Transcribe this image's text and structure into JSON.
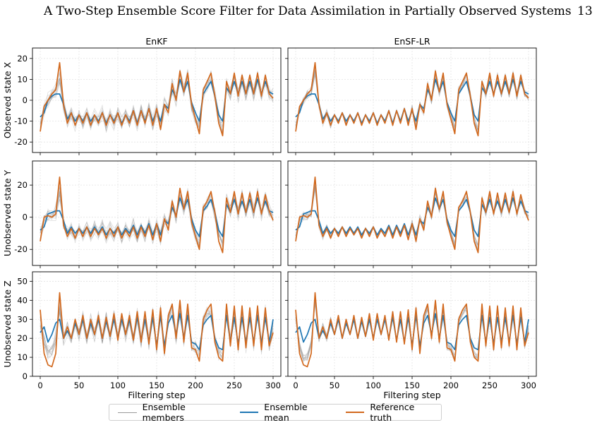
{
  "header": {
    "title": "A Two-Step Ensemble Score Filter for Data Assimilation in Partially Observed Systems",
    "page_number": "13"
  },
  "colors": {
    "ensemble_members": "#9a9a9a",
    "ensemble_mean": "#1f77b4",
    "reference_truth": "#d2691e"
  },
  "chart_data": {
    "type": "line",
    "xlabel": "Filtering step",
    "xlim": [
      -10,
      310
    ],
    "xticks": [
      0,
      50,
      100,
      150,
      200,
      250,
      300
    ],
    "columns": [
      "EnKF",
      "EnSF-LR"
    ],
    "rows": [
      {
        "ylabel": "Observed state X",
        "ylim": [
          -25,
          25
        ],
        "yticks": [
          -20,
          -10,
          0,
          10,
          20
        ]
      },
      {
        "ylabel": "Unobserved state Y",
        "ylim": [
          -30,
          35
        ],
        "yticks": [
          -20,
          0,
          20
        ]
      },
      {
        "ylabel": "Unobserved state Z",
        "ylim": [
          0,
          55
        ],
        "yticks": [
          0,
          10,
          20,
          30,
          40,
          50
        ]
      }
    ],
    "grid": true,
    "legend": {
      "position": "bottom-center",
      "entries": [
        "Ensemble members",
        "Ensemble mean",
        "Reference truth"
      ]
    },
    "series": [
      {
        "name": "Reference truth",
        "x": [
          0,
          5,
          10,
          15,
          20,
          25,
          30,
          35,
          40,
          45,
          50,
          55,
          60,
          65,
          70,
          75,
          80,
          85,
          90,
          95,
          100,
          105,
          110,
          115,
          120,
          125,
          130,
          135,
          140,
          145,
          150,
          155,
          160,
          165,
          170,
          175,
          180,
          185,
          190,
          195,
          200,
          205,
          210,
          215,
          220,
          225,
          230,
          235,
          240,
          245,
          250,
          255,
          260,
          265,
          270,
          275,
          280,
          285,
          290,
          295,
          300
        ],
        "values_by_panel": {
          "X": [
            -15,
            -3,
            0,
            3,
            5,
            18,
            -2,
            -11,
            -6,
            -12,
            -7,
            -11,
            -6,
            -12,
            -7,
            -11,
            -6,
            -12,
            -7,
            -11,
            -6,
            -12,
            -7,
            -11,
            -5,
            -12,
            -5,
            -11,
            -4,
            -12,
            -4,
            -14,
            -2,
            -6,
            8,
            0,
            14,
            4,
            13,
            -2,
            -9,
            -16,
            5,
            9,
            13,
            2,
            -11,
            -17,
            9,
            3,
            13,
            2,
            12,
            3,
            12,
            3,
            13,
            2,
            12,
            3,
            1
          ],
          "Y": [
            -15,
            0,
            1,
            0,
            2,
            25,
            -5,
            -12,
            -7,
            -13,
            -7,
            -12,
            -6,
            -12,
            -7,
            -11,
            -7,
            -13,
            -7,
            -12,
            -6,
            -13,
            -8,
            -12,
            -6,
            -13,
            -6,
            -12,
            -5,
            -14,
            -4,
            -15,
            -1,
            -8,
            10,
            0,
            18,
            5,
            16,
            -3,
            -12,
            -20,
            6,
            10,
            16,
            3,
            -15,
            -22,
            12,
            3,
            16,
            2,
            15,
            3,
            15,
            3,
            16,
            2,
            14,
            4,
            -2
          ],
          "Z": [
            35,
            12,
            6,
            5,
            12,
            44,
            20,
            26,
            20,
            30,
            22,
            32,
            20,
            30,
            22,
            32,
            20,
            31,
            21,
            33,
            19,
            33,
            22,
            32,
            19,
            34,
            18,
            34,
            17,
            35,
            14,
            36,
            12,
            32,
            38,
            20,
            40,
            18,
            38,
            15,
            14,
            8,
            30,
            35,
            38,
            18,
            10,
            8,
            38,
            16,
            37,
            14,
            37,
            15,
            36,
            16,
            37,
            14,
            36,
            16,
            23
          ]
        }
      },
      {
        "name": "Ensemble mean",
        "x": [
          0,
          5,
          10,
          15,
          20,
          25,
          30,
          35,
          40,
          45,
          50,
          55,
          60,
          65,
          70,
          75,
          80,
          85,
          90,
          95,
          100,
          105,
          110,
          115,
          120,
          125,
          130,
          135,
          140,
          145,
          150,
          155,
          160,
          165,
          170,
          175,
          180,
          185,
          190,
          195,
          200,
          205,
          210,
          215,
          220,
          225,
          230,
          235,
          240,
          245,
          250,
          255,
          260,
          265,
          270,
          275,
          280,
          285,
          290,
          295,
          300
        ],
        "values_by_panel": {
          "X": [
            -8,
            -6,
            0,
            2,
            3,
            3,
            -2,
            -9,
            -6,
            -10,
            -7,
            -10,
            -6,
            -10,
            -7,
            -10,
            -6,
            -11,
            -7,
            -10,
            -6,
            -11,
            -7,
            -10,
            -5,
            -11,
            -5,
            -10,
            -4,
            -10,
            -5,
            -10,
            -2,
            -4,
            5,
            1,
            10,
            4,
            9,
            -1,
            -6,
            -10,
            3,
            6,
            9,
            2,
            -7,
            -10,
            6,
            3,
            9,
            3,
            9,
            3,
            9,
            3,
            10,
            3,
            9,
            4,
            3
          ],
          "Y": [
            -8,
            -6,
            2,
            3,
            4,
            4,
            -2,
            -10,
            -6,
            -10,
            -7,
            -10,
            -6,
            -10,
            -6,
            -10,
            -6,
            -11,
            -7,
            -10,
            -6,
            -11,
            -7,
            -10,
            -5,
            -11,
            -5,
            -10,
            -4,
            -11,
            -4,
            -11,
            -2,
            -4,
            6,
            1,
            12,
            5,
            11,
            -1,
            -8,
            -12,
            4,
            7,
            11,
            3,
            -8,
            -12,
            8,
            3,
            11,
            3,
            10,
            3,
            11,
            3,
            12,
            3,
            10,
            4,
            3
          ],
          "Z": [
            23,
            26,
            18,
            22,
            28,
            30,
            20,
            24,
            20,
            28,
            22,
            30,
            20,
            28,
            22,
            30,
            20,
            29,
            21,
            30,
            20,
            30,
            22,
            30,
            20,
            31,
            19,
            30,
            18,
            31,
            16,
            32,
            16,
            28,
            32,
            22,
            33,
            20,
            32,
            18,
            17,
            14,
            27,
            30,
            32,
            20,
            15,
            14,
            32,
            18,
            31,
            17,
            31,
            18,
            31,
            18,
            32,
            17,
            31,
            18,
            30
          ]
        }
      },
      {
        "name": "Ensemble members",
        "note_visible": false
      }
    ]
  }
}
